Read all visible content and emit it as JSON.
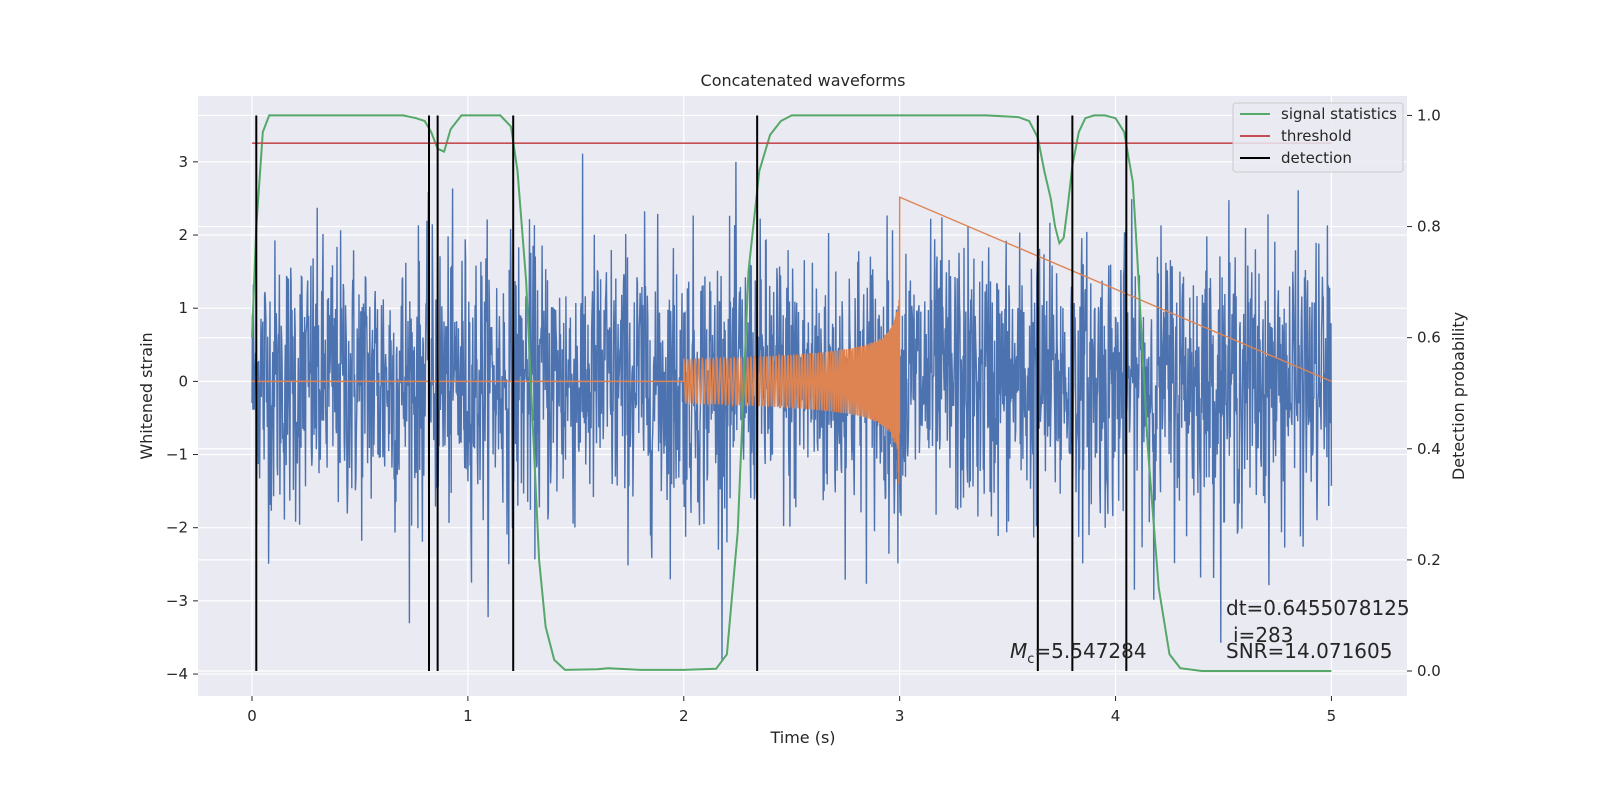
{
  "colors": {
    "axes_bg": "#eaeaf2",
    "grid": "#ffffff",
    "strain": "#4c72b0",
    "template": "#dd8452",
    "signal_statistics": "#55a868",
    "threshold": "#c44e52",
    "detection": "#000000"
  },
  "chart_data": {
    "type": "line",
    "title": "Concatenated waveforms",
    "xlabel": "Time (s)",
    "ylabel_left": "Whitened strain",
    "ylabel_right": "Detection probability",
    "xlim": [
      -0.25,
      5.35
    ],
    "ylim_left": [
      -4.3,
      3.9
    ],
    "ylim_right": [
      -0.045,
      1.035
    ],
    "x_ticks": [
      0,
      1,
      2,
      3,
      4,
      5
    ],
    "y_left_ticks": [
      -4,
      -3,
      -2,
      -1,
      0,
      1,
      2,
      3
    ],
    "y_left_tick_labels": [
      "−4",
      "−3",
      "−2",
      "−1",
      "0",
      "1",
      "2",
      "3"
    ],
    "y_right_ticks": [
      0.0,
      0.2,
      0.4,
      0.6,
      0.8,
      1.0
    ],
    "y_right_tick_labels": [
      "0.0",
      "0.2",
      "0.4",
      "0.6",
      "0.8",
      "1.0"
    ],
    "grid": true,
    "legend_position": "top-right",
    "legend": [
      "signal statistics",
      "threshold",
      "detection"
    ],
    "series": [
      {
        "name": "signal statistics",
        "axis": "right",
        "x": [
          0.0,
          0.02,
          0.05,
          0.08,
          0.12,
          0.2,
          0.4,
          0.6,
          0.7,
          0.76,
          0.8,
          0.83,
          0.86,
          0.89,
          0.92,
          0.97,
          1.05,
          1.15,
          1.2,
          1.23,
          1.27,
          1.3,
          1.33,
          1.36,
          1.4,
          1.45,
          1.6,
          1.65,
          1.8,
          2.0,
          2.15,
          2.2,
          2.25,
          2.3,
          2.35,
          2.4,
          2.45,
          2.5,
          2.7,
          3.0,
          3.4,
          3.55,
          3.6,
          3.64,
          3.67,
          3.7,
          3.72,
          3.74,
          3.76,
          3.78,
          3.8,
          3.83,
          3.86,
          3.9,
          3.95,
          4.0,
          4.04,
          4.08,
          4.1,
          4.15,
          4.2,
          4.25,
          4.3,
          4.4,
          5.0
        ],
        "y": [
          0.6,
          0.8,
          0.97,
          1.0,
          1.0,
          1.0,
          1.0,
          1.0,
          1.0,
          0.995,
          0.99,
          0.97,
          0.94,
          0.935,
          0.975,
          1.0,
          1.0,
          1.0,
          0.98,
          0.9,
          0.7,
          0.45,
          0.2,
          0.08,
          0.02,
          0.002,
          0.003,
          0.005,
          0.002,
          0.002,
          0.004,
          0.03,
          0.25,
          0.72,
          0.9,
          0.965,
          0.99,
          1.0,
          1.0,
          1.0,
          1.0,
          0.997,
          0.99,
          0.96,
          0.9,
          0.85,
          0.8,
          0.77,
          0.78,
          0.84,
          0.91,
          0.97,
          0.995,
          1.0,
          1.0,
          0.995,
          0.97,
          0.88,
          0.75,
          0.4,
          0.15,
          0.03,
          0.005,
          0.0,
          0.0
        ]
      },
      {
        "name": "threshold",
        "axis": "right",
        "x": [
          0.0,
          5.0
        ],
        "y": [
          0.95,
          0.95
        ]
      }
    ],
    "strain_range": [
      0.0,
      5.0
    ],
    "template_waveform": {
      "x_range": [
        0.0,
        5.0
      ],
      "chirp_start": 2.0,
      "chirp_end": 3.0
    },
    "detections": [
      0.02,
      0.82,
      0.86,
      1.21,
      2.34,
      3.64,
      3.8,
      4.05
    ],
    "annotations": {
      "mc_label": "=5.547284",
      "dt": "dt=0.6455078125",
      "i": "i=283",
      "snr": "SNR=14.071605"
    }
  }
}
